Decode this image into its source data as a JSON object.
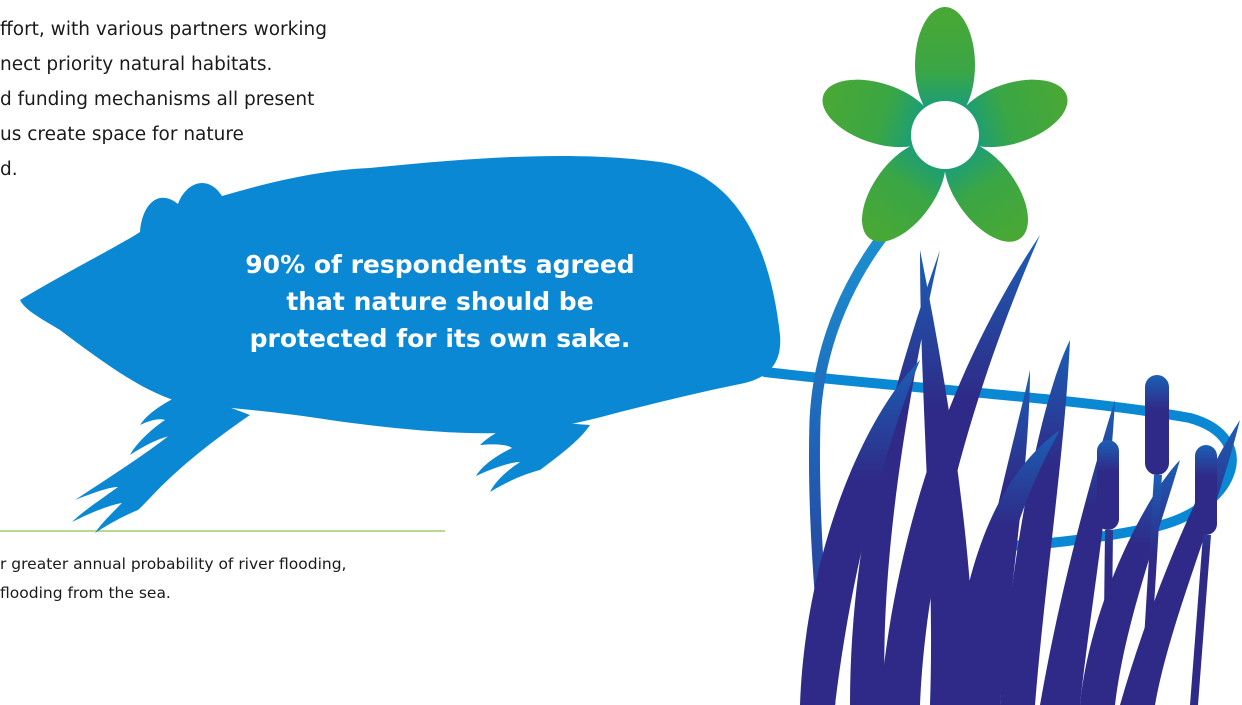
{
  "body_text": {
    "lines": [
      "ffort, with various partners working",
      "nect priority natural habitats.",
      "d funding mechanisms all present",
      "us create space for nature",
      "d."
    ]
  },
  "callout": {
    "lines": [
      "90% of respondents agreed",
      "that nature should be",
      "protected for its own sake."
    ]
  },
  "footnote": {
    "lines": [
      "r greater annual probability of river flooding,",
      "flooding from the sea."
    ]
  }
}
